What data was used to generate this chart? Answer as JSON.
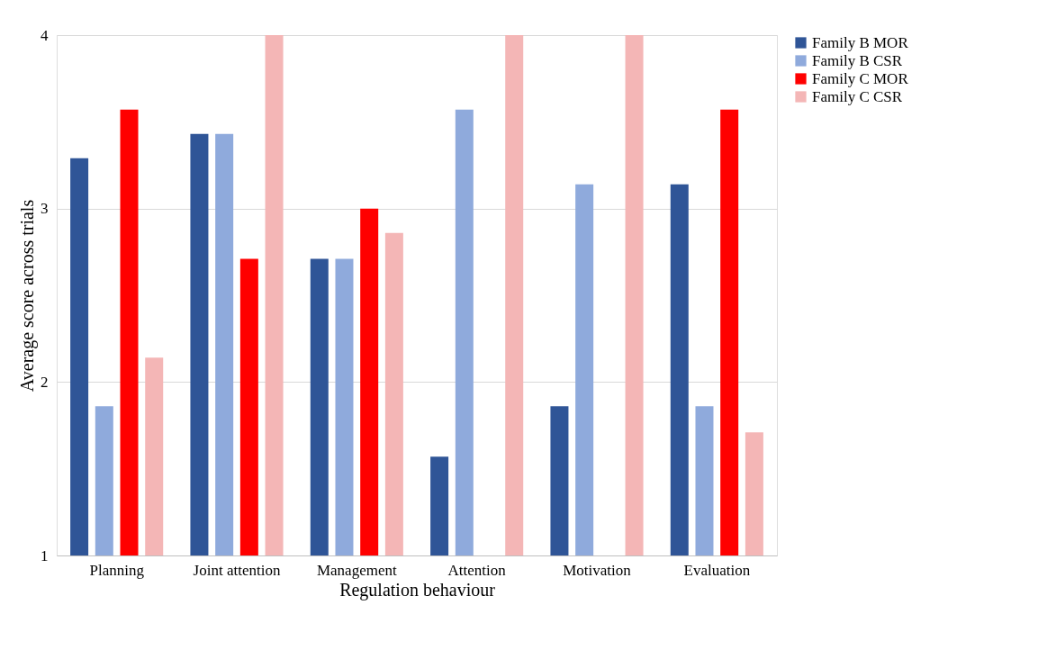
{
  "chart_data": {
    "type": "bar",
    "xlabel": "Regulation behaviour",
    "ylabel": "Average score across trials",
    "categories": [
      "Planning",
      "Joint attention",
      "Management",
      "Attention",
      "Motivation",
      "Evaluation"
    ],
    "series": [
      {
        "name": "Family B MOR",
        "color": "#2f5597",
        "values": [
          3.29,
          3.43,
          2.71,
          1.57,
          1.86,
          3.14
        ]
      },
      {
        "name": "Family B CSR",
        "color": "#8faadc",
        "values": [
          1.86,
          3.43,
          2.71,
          3.57,
          3.14,
          1.86
        ]
      },
      {
        "name": "Family C MOR",
        "color": "#ff0000",
        "values": [
          3.57,
          2.71,
          3.0,
          1,
          1,
          3.57
        ]
      },
      {
        "name": "Family C CSR",
        "color": "#f4b6b6",
        "values": [
          2.14,
          4,
          2.86,
          4,
          4,
          1.71
        ]
      }
    ],
    "ylim": [
      1,
      4
    ],
    "yticks": [
      1,
      2,
      3,
      4
    ],
    "grid": "y",
    "legend": "right"
  }
}
